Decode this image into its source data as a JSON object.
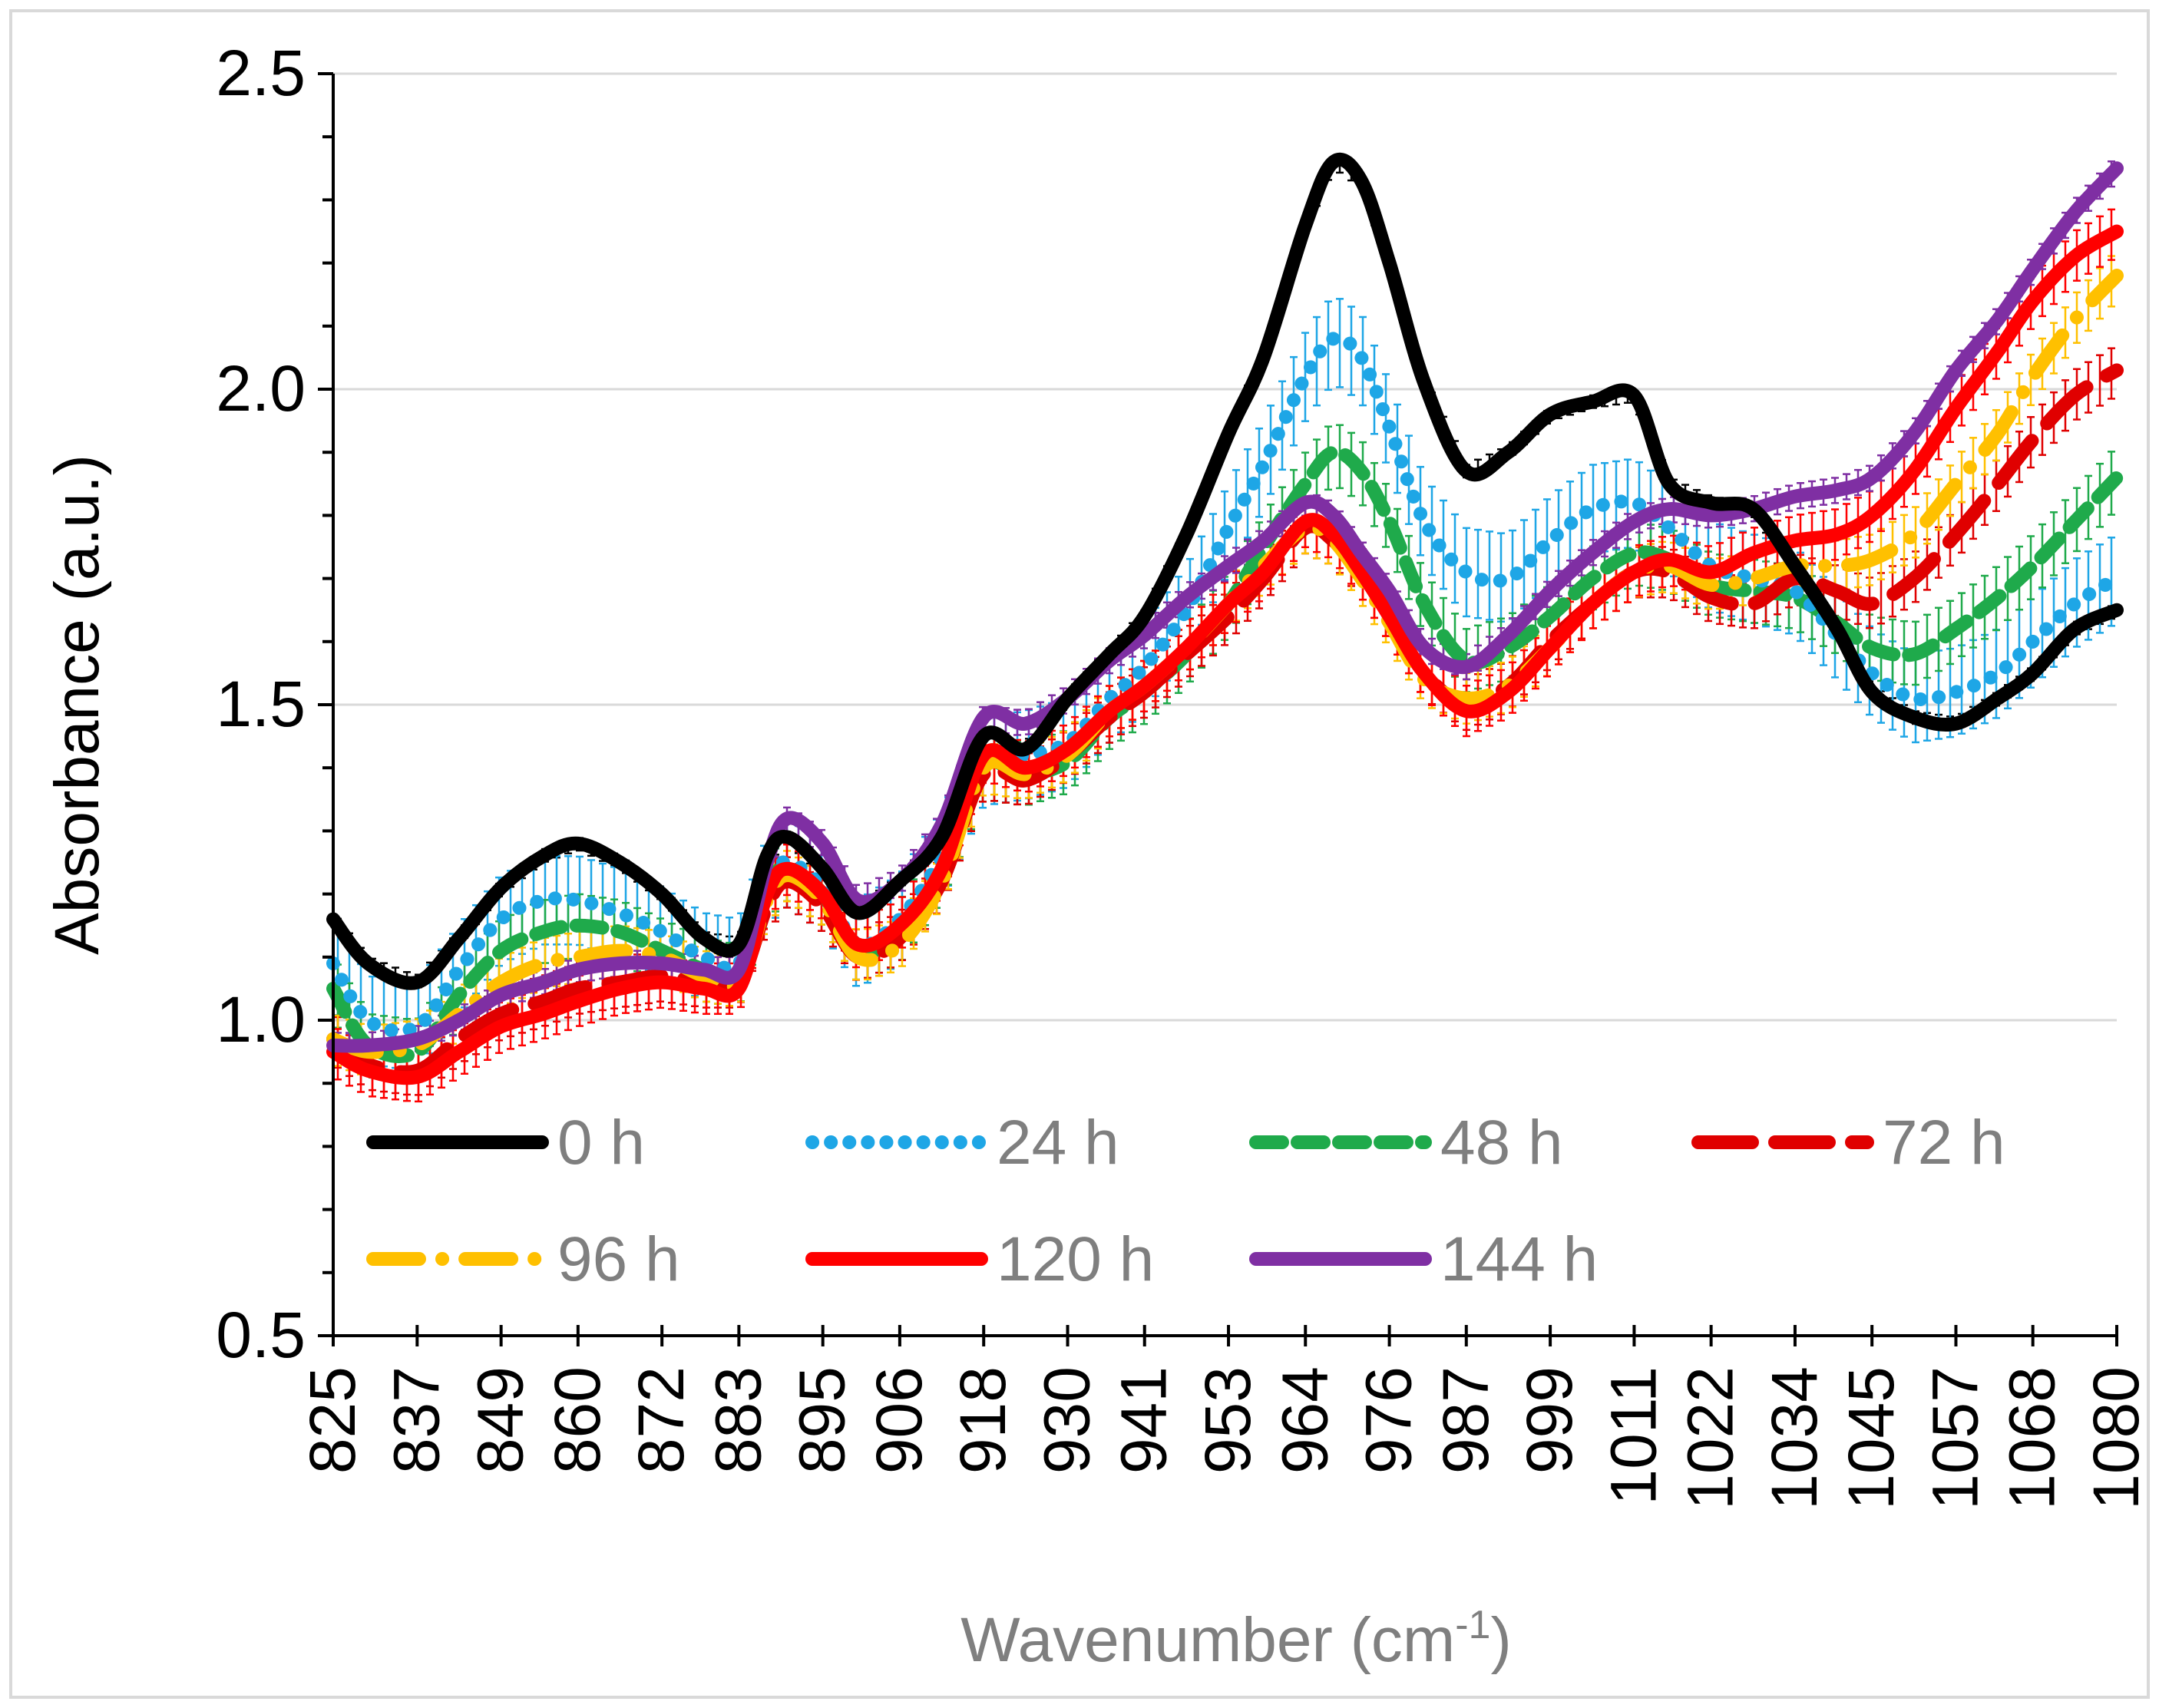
{
  "chart_data": {
    "type": "line",
    "title": "",
    "xlabel": "Wavenumber (cm",
    "xlabel_sup": "-1",
    "xlabel_end": ")",
    "ylabel": "Absorbance (a.u.)",
    "ylim": [
      0.5,
      2.5
    ],
    "xlim": [
      825,
      1080
    ],
    "y_major_ticks": [
      "0.5",
      "1.0",
      "1.5",
      "2.0",
      "2.5"
    ],
    "y_major_values": [
      0.5,
      1.0,
      1.5,
      2.0,
      2.5
    ],
    "x_ticks": [
      "825",
      "837",
      "849",
      "860",
      "872",
      "883",
      "895",
      "906",
      "918",
      "930",
      "941",
      "953",
      "964",
      "976",
      "987",
      "999",
      "1011",
      "1022",
      "1034",
      "1045",
      "1057",
      "1068",
      "1080"
    ],
    "x_tick_values": [
      825,
      837,
      849,
      860,
      872,
      883,
      895,
      906,
      918,
      930,
      941,
      953,
      964,
      976,
      987,
      999,
      1011,
      1022,
      1034,
      1045,
      1057,
      1068,
      1080
    ],
    "grid": true,
    "legend_position": "inside-bottom-left",
    "series": [
      {
        "name": "0 h",
        "color": "#000000",
        "dash": "solid",
        "error": 0.01,
        "x": [
          825,
          830,
          837,
          843,
          849,
          855,
          860,
          866,
          872,
          878,
          883,
          887,
          890,
          895,
          900,
          906,
          912,
          918,
          924,
          930,
          936,
          941,
          947,
          953,
          958,
          964,
          968,
          972,
          976,
          981,
          987,
          993,
          999,
          1005,
          1011,
          1016,
          1022,
          1028,
          1034,
          1040,
          1045,
          1051,
          1057,
          1063,
          1068,
          1074,
          1080
        ],
        "y": [
          1.16,
          1.09,
          1.06,
          1.13,
          1.21,
          1.26,
          1.28,
          1.25,
          1.2,
          1.13,
          1.12,
          1.26,
          1.29,
          1.24,
          1.17,
          1.22,
          1.29,
          1.45,
          1.43,
          1.51,
          1.58,
          1.64,
          1.77,
          1.93,
          2.05,
          2.26,
          2.36,
          2.33,
          2.2,
          2.01,
          1.87,
          1.9,
          1.96,
          1.98,
          1.99,
          1.85,
          1.82,
          1.81,
          1.72,
          1.62,
          1.52,
          1.48,
          1.47,
          1.51,
          1.55,
          1.62,
          1.65
        ]
      },
      {
        "name": "24 h",
        "color": "#1ea6e6",
        "dash": "dotted",
        "error": 0.07,
        "x": [
          825,
          830,
          837,
          843,
          849,
          855,
          860,
          866,
          872,
          878,
          883,
          887,
          890,
          895,
          900,
          906,
          912,
          918,
          924,
          930,
          936,
          941,
          947,
          953,
          958,
          964,
          968,
          972,
          976,
          981,
          987,
          993,
          999,
          1005,
          1011,
          1016,
          1022,
          1028,
          1034,
          1040,
          1045,
          1051,
          1057,
          1063,
          1068,
          1074,
          1080
        ],
        "y": [
          1.09,
          1.0,
          0.99,
          1.08,
          1.16,
          1.19,
          1.19,
          1.17,
          1.14,
          1.1,
          1.09,
          1.22,
          1.25,
          1.21,
          1.12,
          1.16,
          1.26,
          1.41,
          1.42,
          1.44,
          1.51,
          1.56,
          1.65,
          1.78,
          1.88,
          2.02,
          2.08,
          2.05,
          1.94,
          1.79,
          1.71,
          1.7,
          1.76,
          1.81,
          1.82,
          1.78,
          1.72,
          1.7,
          1.68,
          1.61,
          1.55,
          1.51,
          1.52,
          1.55,
          1.6,
          1.66,
          1.7
        ]
      },
      {
        "name": "48 h",
        "color": "#1faa4b",
        "dash": "dashed",
        "error": 0.05,
        "x": [
          825,
          830,
          837,
          843,
          849,
          855,
          860,
          866,
          872,
          878,
          883,
          887,
          890,
          895,
          900,
          906,
          912,
          918,
          924,
          930,
          936,
          941,
          947,
          953,
          958,
          964,
          968,
          972,
          976,
          981,
          987,
          993,
          999,
          1005,
          1011,
          1016,
          1022,
          1028,
          1034,
          1040,
          1045,
          1051,
          1057,
          1063,
          1068,
          1074,
          1080
        ],
        "y": [
          1.05,
          0.96,
          0.95,
          1.04,
          1.11,
          1.14,
          1.15,
          1.14,
          1.11,
          1.08,
          1.07,
          1.21,
          1.24,
          1.2,
          1.11,
          1.14,
          1.24,
          1.4,
          1.39,
          1.41,
          1.48,
          1.52,
          1.58,
          1.66,
          1.75,
          1.85,
          1.9,
          1.87,
          1.79,
          1.66,
          1.57,
          1.59,
          1.64,
          1.7,
          1.74,
          1.73,
          1.69,
          1.68,
          1.67,
          1.63,
          1.59,
          1.58,
          1.62,
          1.67,
          1.72,
          1.79,
          1.86
        ]
      },
      {
        "name": "72 h",
        "color": "#e00000",
        "dash": "longdash",
        "error": 0.04,
        "x": [
          825,
          830,
          837,
          843,
          849,
          855,
          860,
          866,
          872,
          878,
          883,
          887,
          890,
          895,
          900,
          906,
          912,
          918,
          924,
          930,
          936,
          941,
          947,
          953,
          958,
          964,
          968,
          972,
          976,
          981,
          987,
          993,
          999,
          1005,
          1011,
          1016,
          1022,
          1028,
          1034,
          1040,
          1045,
          1051,
          1057,
          1063,
          1068,
          1074,
          1080
        ],
        "y": [
          0.97,
          0.93,
          0.92,
          0.97,
          1.01,
          1.03,
          1.05,
          1.06,
          1.07,
          1.06,
          1.06,
          1.18,
          1.22,
          1.18,
          1.1,
          1.13,
          1.22,
          1.39,
          1.38,
          1.42,
          1.48,
          1.52,
          1.58,
          1.64,
          1.7,
          1.78,
          1.76,
          1.71,
          1.64,
          1.55,
          1.5,
          1.53,
          1.6,
          1.66,
          1.71,
          1.71,
          1.67,
          1.66,
          1.7,
          1.68,
          1.66,
          1.7,
          1.77,
          1.85,
          1.92,
          1.99,
          2.03
        ]
      },
      {
        "name": "96 h",
        "color": "#ffc000",
        "dash": "dashdot",
        "error": 0.04,
        "x": [
          825,
          830,
          837,
          843,
          849,
          855,
          860,
          866,
          872,
          878,
          883,
          887,
          890,
          895,
          900,
          906,
          912,
          918,
          924,
          930,
          936,
          941,
          947,
          953,
          958,
          964,
          968,
          972,
          976,
          981,
          987,
          993,
          999,
          1005,
          1011,
          1016,
          1022,
          1028,
          1034,
          1040,
          1045,
          1051,
          1057,
          1063,
          1068,
          1074,
          1080
        ],
        "y": [
          0.97,
          0.95,
          0.96,
          1.01,
          1.06,
          1.09,
          1.1,
          1.11,
          1.1,
          1.07,
          1.06,
          1.19,
          1.23,
          1.19,
          1.1,
          1.12,
          1.22,
          1.4,
          1.39,
          1.42,
          1.49,
          1.53,
          1.59,
          1.66,
          1.72,
          1.78,
          1.76,
          1.7,
          1.63,
          1.54,
          1.51,
          1.53,
          1.59,
          1.66,
          1.71,
          1.72,
          1.69,
          1.7,
          1.72,
          1.72,
          1.73,
          1.77,
          1.85,
          1.93,
          2.02,
          2.11,
          2.18
        ]
      },
      {
        "name": "120 h",
        "color": "#ff0000",
        "dash": "solid",
        "error": 0.04,
        "x": [
          825,
          830,
          837,
          843,
          849,
          855,
          860,
          866,
          872,
          878,
          883,
          887,
          890,
          895,
          900,
          906,
          912,
          918,
          924,
          930,
          936,
          941,
          947,
          953,
          958,
          964,
          968,
          972,
          976,
          981,
          987,
          993,
          999,
          1005,
          1011,
          1016,
          1022,
          1028,
          1034,
          1040,
          1045,
          1051,
          1057,
          1063,
          1068,
          1074,
          1080
        ],
        "y": [
          0.95,
          0.92,
          0.91,
          0.95,
          0.99,
          1.01,
          1.03,
          1.05,
          1.06,
          1.05,
          1.05,
          1.2,
          1.24,
          1.2,
          1.12,
          1.15,
          1.24,
          1.42,
          1.4,
          1.43,
          1.49,
          1.53,
          1.59,
          1.66,
          1.71,
          1.79,
          1.77,
          1.71,
          1.64,
          1.55,
          1.49,
          1.52,
          1.59,
          1.66,
          1.71,
          1.73,
          1.71,
          1.74,
          1.76,
          1.77,
          1.8,
          1.87,
          1.97,
          2.06,
          2.14,
          2.21,
          2.25
        ]
      },
      {
        "name": "144 h",
        "color": "#7f2fa3",
        "dash": "solid",
        "error": 0.02,
        "x": [
          825,
          830,
          837,
          843,
          849,
          855,
          860,
          866,
          872,
          878,
          883,
          887,
          890,
          895,
          900,
          906,
          912,
          918,
          924,
          930,
          936,
          941,
          947,
          953,
          958,
          964,
          968,
          972,
          976,
          981,
          987,
          993,
          999,
          1005,
          1011,
          1016,
          1022,
          1028,
          1034,
          1040,
          1045,
          1051,
          1057,
          1063,
          1068,
          1074,
          1080
        ],
        "y": [
          0.96,
          0.96,
          0.97,
          1.0,
          1.04,
          1.06,
          1.08,
          1.09,
          1.09,
          1.08,
          1.08,
          1.25,
          1.32,
          1.28,
          1.19,
          1.22,
          1.31,
          1.48,
          1.47,
          1.51,
          1.57,
          1.61,
          1.67,
          1.72,
          1.76,
          1.82,
          1.8,
          1.74,
          1.68,
          1.59,
          1.56,
          1.61,
          1.68,
          1.74,
          1.79,
          1.81,
          1.8,
          1.81,
          1.83,
          1.84,
          1.86,
          1.93,
          2.03,
          2.11,
          2.19,
          2.28,
          2.35
        ]
      }
    ]
  }
}
